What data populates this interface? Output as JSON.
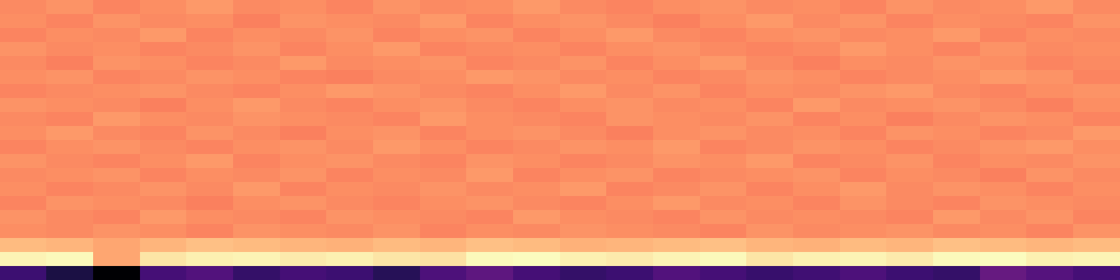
{
  "chart_data": {
    "type": "heatmap",
    "tick_labels": false,
    "cells": [
      [
        0.74,
        0.76,
        0.73,
        0.75,
        0.77,
        0.74,
        0.75,
        0.73,
        0.76,
        0.74,
        0.75,
        0.77,
        0.74,
        0.73,
        0.75,
        0.76,
        0.74,
        0.75,
        0.73,
        0.76,
        0.74,
        0.75,
        0.77,
        0.74
      ],
      [
        0.75,
        0.73,
        0.76,
        0.74,
        0.75,
        0.72,
        0.76,
        0.75,
        0.74,
        0.77,
        0.73,
        0.75,
        0.76,
        0.74,
        0.72,
        0.75,
        0.77,
        0.74,
        0.76,
        0.73,
        0.75,
        0.74,
        0.73,
        0.76
      ],
      [
        0.73,
        0.75,
        0.74,
        0.77,
        0.73,
        0.75,
        0.74,
        0.76,
        0.73,
        0.75,
        0.76,
        0.73,
        0.75,
        0.77,
        0.74,
        0.73,
        0.75,
        0.76,
        0.74,
        0.75,
        0.77,
        0.73,
        0.75,
        0.74
      ],
      [
        0.76,
        0.74,
        0.75,
        0.73,
        0.74,
        0.76,
        0.73,
        0.75,
        0.77,
        0.73,
        0.74,
        0.75,
        0.73,
        0.75,
        0.76,
        0.74,
        0.73,
        0.74,
        0.77,
        0.75,
        0.73,
        0.76,
        0.74,
        0.75
      ],
      [
        0.74,
        0.72,
        0.76,
        0.75,
        0.73,
        0.74,
        0.77,
        0.74,
        0.75,
        0.76,
        0.73,
        0.74,
        0.76,
        0.73,
        0.75,
        0.77,
        0.74,
        0.72,
        0.75,
        0.74,
        0.76,
        0.75,
        0.73,
        0.74
      ],
      [
        0.75,
        0.76,
        0.73,
        0.74,
        0.76,
        0.75,
        0.73,
        0.72,
        0.74,
        0.75,
        0.77,
        0.76,
        0.74,
        0.75,
        0.73,
        0.74,
        0.76,
        0.75,
        0.73,
        0.74,
        0.75,
        0.77,
        0.76,
        0.73
      ],
      [
        0.73,
        0.74,
        0.75,
        0.76,
        0.74,
        0.73,
        0.75,
        0.77,
        0.76,
        0.74,
        0.73,
        0.75,
        0.77,
        0.74,
        0.76,
        0.73,
        0.75,
        0.74,
        0.76,
        0.77,
        0.74,
        0.73,
        0.75,
        0.76
      ],
      [
        0.76,
        0.75,
        0.74,
        0.72,
        0.75,
        0.77,
        0.74,
        0.73,
        0.75,
        0.76,
        0.74,
        0.73,
        0.75,
        0.76,
        0.74,
        0.75,
        0.73,
        0.77,
        0.74,
        0.75,
        0.76,
        0.74,
        0.72,
        0.75
      ],
      [
        0.74,
        0.73,
        0.77,
        0.75,
        0.74,
        0.76,
        0.75,
        0.74,
        0.73,
        0.77,
        0.75,
        0.74,
        0.73,
        0.76,
        0.75,
        0.74,
        0.76,
        0.73,
        0.75,
        0.72,
        0.74,
        0.76,
        0.75,
        0.73
      ],
      [
        0.75,
        0.77,
        0.74,
        0.73,
        0.76,
        0.74,
        0.72,
        0.75,
        0.76,
        0.73,
        0.75,
        0.76,
        0.74,
        0.72,
        0.75,
        0.76,
        0.74,
        0.75,
        0.73,
        0.76,
        0.75,
        0.73,
        0.74,
        0.77
      ],
      [
        0.73,
        0.75,
        0.76,
        0.74,
        0.73,
        0.75,
        0.76,
        0.74,
        0.77,
        0.75,
        0.73,
        0.74,
        0.76,
        0.75,
        0.77,
        0.73,
        0.74,
        0.76,
        0.75,
        0.73,
        0.74,
        0.76,
        0.77,
        0.75
      ],
      [
        0.76,
        0.74,
        0.73,
        0.75,
        0.77,
        0.73,
        0.75,
        0.76,
        0.74,
        0.73,
        0.76,
        0.75,
        0.73,
        0.74,
        0.76,
        0.75,
        0.77,
        0.73,
        0.74,
        0.76,
        0.73,
        0.75,
        0.74,
        0.76
      ],
      [
        0.74,
        0.75,
        0.76,
        0.73,
        0.75,
        0.74,
        0.76,
        0.73,
        0.75,
        0.74,
        0.77,
        0.73,
        0.75,
        0.76,
        0.73,
        0.74,
        0.75,
        0.76,
        0.73,
        0.75,
        0.74,
        0.72,
        0.76,
        0.74
      ],
      [
        0.75,
        0.73,
        0.74,
        0.76,
        0.74,
        0.77,
        0.73,
        0.75,
        0.74,
        0.76,
        0.74,
        0.75,
        0.77,
        0.73,
        0.74,
        0.76,
        0.73,
        0.75,
        0.77,
        0.74,
        0.76,
        0.75,
        0.73,
        0.75
      ],
      [
        0.73,
        0.76,
        0.75,
        0.74,
        0.72,
        0.75,
        0.76,
        0.74,
        0.73,
        0.75,
        0.76,
        0.74,
        0.73,
        0.75,
        0.77,
        0.74,
        0.75,
        0.73,
        0.76,
        0.74,
        0.73,
        0.76,
        0.75,
        0.74
      ],
      [
        0.76,
        0.74,
        0.73,
        0.77,
        0.75,
        0.74,
        0.73,
        0.76,
        0.75,
        0.74,
        0.73,
        0.77,
        0.75,
        0.74,
        0.73,
        0.76,
        0.74,
        0.75,
        0.74,
        0.73,
        0.77,
        0.74,
        0.76,
        0.73
      ],
      [
        0.75,
        0.74,
        0.76,
        0.75,
        0.73,
        0.76,
        0.75,
        0.74,
        0.76,
        0.73,
        0.75,
        0.74,
        0.76,
        0.75,
        0.74,
        0.73,
        0.76,
        0.74,
        0.75,
        0.76,
        0.74,
        0.75,
        0.73,
        0.76
      ],
      [
        0.84,
        0.83,
        0.8,
        0.83,
        0.85,
        0.84,
        0.83,
        0.82,
        0.84,
        0.83,
        0.85,
        0.84,
        0.82,
        0.83,
        0.84,
        0.85,
        0.83,
        0.82,
        0.84,
        0.83,
        0.85,
        0.84,
        0.83,
        0.84
      ],
      [
        0.96,
        0.97,
        0.8,
        0.93,
        0.95,
        0.96,
        0.94,
        0.95,
        0.93,
        0.92,
        0.97,
        0.98,
        0.95,
        0.94,
        0.96,
        0.97,
        0.93,
        0.95,
        0.96,
        0.94,
        0.97,
        0.98,
        0.95,
        0.96
      ],
      [
        0.2,
        0.12,
        0.0,
        0.22,
        0.25,
        0.18,
        0.22,
        0.2,
        0.15,
        0.24,
        0.28,
        0.22,
        0.18,
        0.2,
        0.25,
        0.22,
        0.19,
        0.21,
        0.24,
        0.2,
        0.18,
        0.3,
        0.26,
        0.22
      ]
    ]
  }
}
